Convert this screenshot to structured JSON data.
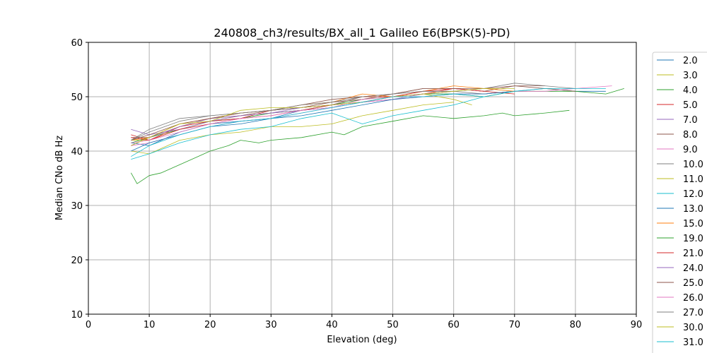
{
  "chart_data": {
    "type": "line",
    "title": "240808_ch3/results/BX_all_1 Galileo E6(BPSK(5)-PD)",
    "xlabel": "Elevation (deg)",
    "ylabel": "Median CNo dB Hz",
    "xlim": [
      0,
      90
    ],
    "ylim": [
      10,
      60
    ],
    "xticks": [
      "0",
      "10",
      "20",
      "30",
      "40",
      "50",
      "60",
      "70",
      "80",
      "90"
    ],
    "yticks": [
      "10",
      "20",
      "30",
      "40",
      "50",
      "60"
    ],
    "grid": true,
    "legend_position": "right-outside",
    "series": [
      {
        "name": "2.0",
        "color": "#1f77b4",
        "x": [
          7,
          10,
          15,
          20,
          25,
          30,
          35,
          40,
          45,
          50,
          55,
          60,
          65,
          70,
          75,
          80,
          85
        ],
        "y": [
          41.5,
          41.0,
          43.5,
          45.0,
          45.5,
          46.0,
          47.5,
          48.0,
          49.0,
          50.0,
          50.5,
          50.5,
          50.5,
          51.0,
          51.5,
          51.0,
          51.0
        ]
      },
      {
        "name": "3.0",
        "color": "#bcbd22",
        "x": [
          7,
          10,
          15,
          20,
          25,
          30,
          35,
          40,
          45,
          50,
          55,
          60,
          63
        ],
        "y": [
          42.0,
          42.0,
          44.0,
          45.5,
          46.5,
          47.0,
          47.5,
          48.5,
          50.0,
          50.0,
          50.5,
          49.5,
          48.5
        ]
      },
      {
        "name": "4.0",
        "color": "#2ca02c",
        "x": [
          7,
          10,
          15,
          20,
          25,
          30,
          35,
          40,
          45,
          50,
          55,
          60,
          65,
          70,
          75,
          80,
          85,
          88
        ],
        "y": [
          41.5,
          42.5,
          44.0,
          45.5,
          46.0,
          47.0,
          47.5,
          48.5,
          49.5,
          50.0,
          50.5,
          50.5,
          50.0,
          51.0,
          51.0,
          51.0,
          50.5,
          51.5
        ]
      },
      {
        "name": "5.0",
        "color": "#d62728",
        "x": [
          7,
          10,
          15,
          20,
          25,
          30,
          35,
          40,
          45,
          50,
          55,
          60,
          65,
          70
        ],
        "y": [
          43.0,
          42.0,
          44.5,
          45.5,
          46.0,
          47.5,
          48.0,
          48.5,
          50.0,
          50.0,
          50.5,
          51.5,
          51.0,
          50.5
        ]
      },
      {
        "name": "7.0",
        "color": "#9467bd",
        "x": [
          7,
          10,
          15,
          20,
          25,
          30,
          35,
          40,
          45,
          50,
          55,
          60
        ],
        "y": [
          44.0,
          43.0,
          44.0,
          45.5,
          46.5,
          47.0,
          47.5,
          48.0,
          49.0,
          49.5,
          50.5,
          51.0
        ]
      },
      {
        "name": "8.0",
        "color": "#8c564b",
        "x": [
          7,
          10,
          15,
          20,
          25,
          30,
          35,
          40,
          45,
          50,
          55,
          60,
          65,
          70,
          75,
          80
        ],
        "y": [
          42.5,
          42.5,
          44.5,
          46.0,
          46.5,
          47.5,
          48.0,
          49.0,
          49.5,
          50.5,
          51.5,
          51.5,
          51.0,
          52.0,
          51.5,
          51.0
        ]
      },
      {
        "name": "9.0",
        "color": "#e377c2",
        "x": [
          7,
          10,
          15,
          20,
          25,
          30,
          35,
          40,
          45,
          50,
          55,
          60,
          65,
          70,
          75,
          80,
          86
        ],
        "y": [
          41.0,
          41.5,
          43.0,
          44.5,
          45.5,
          46.0,
          47.0,
          48.0,
          49.0,
          49.5,
          50.0,
          50.5,
          50.5,
          51.0,
          51.0,
          51.5,
          52.0
        ]
      },
      {
        "name": "10.0",
        "color": "#7f7f7f",
        "x": [
          7,
          10,
          15,
          20,
          25,
          30,
          35,
          40,
          45,
          50,
          55,
          60,
          65,
          70
        ],
        "y": [
          42.0,
          44.0,
          46.0,
          46.5,
          47.0,
          47.5,
          48.0,
          48.5,
          50.0,
          50.5,
          51.0,
          51.0,
          50.5,
          51.0
        ]
      },
      {
        "name": "11.0",
        "color": "#bcbd22",
        "x": [
          7,
          10,
          15,
          20,
          25,
          30,
          35,
          40,
          45,
          50,
          55,
          60
        ],
        "y": [
          40.0,
          39.5,
          42.0,
          43.0,
          43.5,
          44.5,
          44.5,
          45.0,
          46.5,
          47.5,
          48.5,
          49.0
        ]
      },
      {
        "name": "12.0",
        "color": "#17becf",
        "x": [
          7,
          10,
          15,
          20,
          25,
          30,
          35,
          40,
          45,
          50,
          55,
          60,
          65
        ],
        "y": [
          38.5,
          39.5,
          41.5,
          43.0,
          44.0,
          44.5,
          46.0,
          47.0,
          45.0,
          46.5,
          47.5,
          48.5,
          50.0
        ]
      },
      {
        "name": "13.0",
        "color": "#1f77b4",
        "x": [
          7,
          10,
          15,
          20,
          25,
          30,
          35,
          40,
          45,
          50,
          55,
          60,
          65,
          70
        ],
        "y": [
          40.0,
          41.5,
          43.0,
          44.5,
          45.0,
          46.0,
          46.5,
          47.5,
          48.5,
          49.5,
          50.0,
          50.5,
          50.5,
          51.0
        ]
      },
      {
        "name": "15.0",
        "color": "#ff7f0e",
        "x": [
          7,
          10,
          15,
          20,
          25,
          30,
          35,
          40,
          45,
          50,
          55,
          60,
          65,
          70
        ],
        "y": [
          42.0,
          42.5,
          45.0,
          46.0,
          47.0,
          47.5,
          48.5,
          49.0,
          50.5,
          50.0,
          51.0,
          52.0,
          51.5,
          51.0
        ]
      },
      {
        "name": "19.0",
        "color": "#2ca02c",
        "x": [
          7,
          8,
          10,
          12,
          15,
          18,
          20,
          23,
          25,
          28,
          30,
          35,
          40,
          42,
          45,
          50,
          55,
          60,
          65,
          68,
          70,
          75,
          79
        ],
        "y": [
          36.0,
          34.0,
          35.5,
          36.0,
          37.5,
          39.0,
          40.0,
          41.0,
          42.0,
          41.5,
          42.0,
          42.5,
          43.5,
          43.0,
          44.5,
          45.5,
          46.5,
          46.0,
          46.5,
          47.0,
          46.5,
          47.0,
          47.5
        ]
      },
      {
        "name": "21.0",
        "color": "#d62728",
        "x": [
          7,
          10,
          15,
          20,
          25,
          30,
          35,
          40,
          45,
          50,
          55,
          60,
          65
        ],
        "y": [
          42.5,
          42.0,
          44.0,
          45.0,
          46.0,
          46.5,
          47.5,
          48.5,
          49.0,
          50.0,
          51.0,
          51.5,
          51.0
        ]
      },
      {
        "name": "24.0",
        "color": "#9467bd",
        "x": [
          7,
          10,
          15,
          20,
          25,
          30,
          35,
          40,
          45,
          50,
          55,
          60
        ],
        "y": [
          41.0,
          42.5,
          44.5,
          46.0,
          46.5,
          47.0,
          48.0,
          48.5,
          49.0,
          50.0,
          50.5,
          51.0
        ]
      },
      {
        "name": "25.0",
        "color": "#8c564b",
        "x": [
          7,
          10,
          15,
          20,
          25,
          30,
          35,
          40,
          45,
          50,
          55,
          60,
          65,
          70,
          75
        ],
        "y": [
          42.0,
          43.0,
          45.0,
          46.0,
          47.0,
          47.5,
          48.5,
          49.5,
          50.0,
          50.5,
          51.5,
          51.5,
          51.5,
          52.0,
          52.0
        ]
      },
      {
        "name": "26.0",
        "color": "#e377c2",
        "x": [
          7,
          10,
          15,
          20,
          25,
          30,
          35,
          40,
          45,
          50,
          55,
          60
        ],
        "y": [
          41.5,
          42.0,
          43.5,
          45.0,
          46.0,
          46.5,
          47.5,
          48.0,
          49.5,
          50.0,
          50.5,
          51.0
        ]
      },
      {
        "name": "27.0",
        "color": "#7f7f7f",
        "x": [
          7,
          10,
          15,
          20,
          25,
          30,
          35,
          40,
          45,
          50,
          55,
          60,
          65,
          70,
          75,
          80
        ],
        "y": [
          42.0,
          43.5,
          45.5,
          46.5,
          47.0,
          47.5,
          48.5,
          49.0,
          50.0,
          50.5,
          51.0,
          51.0,
          51.5,
          52.5,
          52.0,
          51.5
        ]
      },
      {
        "name": "30.0",
        "color": "#bcbd22",
        "x": [
          7,
          10,
          15,
          20,
          25,
          30,
          35,
          40,
          45,
          50,
          55,
          60,
          65,
          70
        ],
        "y": [
          41.0,
          42.5,
          45.0,
          45.5,
          47.5,
          48.0,
          48.0,
          48.5,
          49.0,
          50.0,
          50.5,
          51.0,
          51.5,
          51.5
        ]
      },
      {
        "name": "31.0",
        "color": "#17becf",
        "x": [
          7,
          10,
          15,
          20,
          25,
          30,
          35,
          40,
          45,
          50,
          55,
          60,
          65,
          70,
          75,
          80,
          85
        ],
        "y": [
          39.0,
          41.0,
          43.0,
          44.5,
          45.5,
          46.0,
          47.0,
          48.0,
          49.0,
          50.0,
          50.0,
          50.5,
          50.0,
          51.0,
          51.5,
          51.5,
          51.5
        ]
      }
    ]
  }
}
